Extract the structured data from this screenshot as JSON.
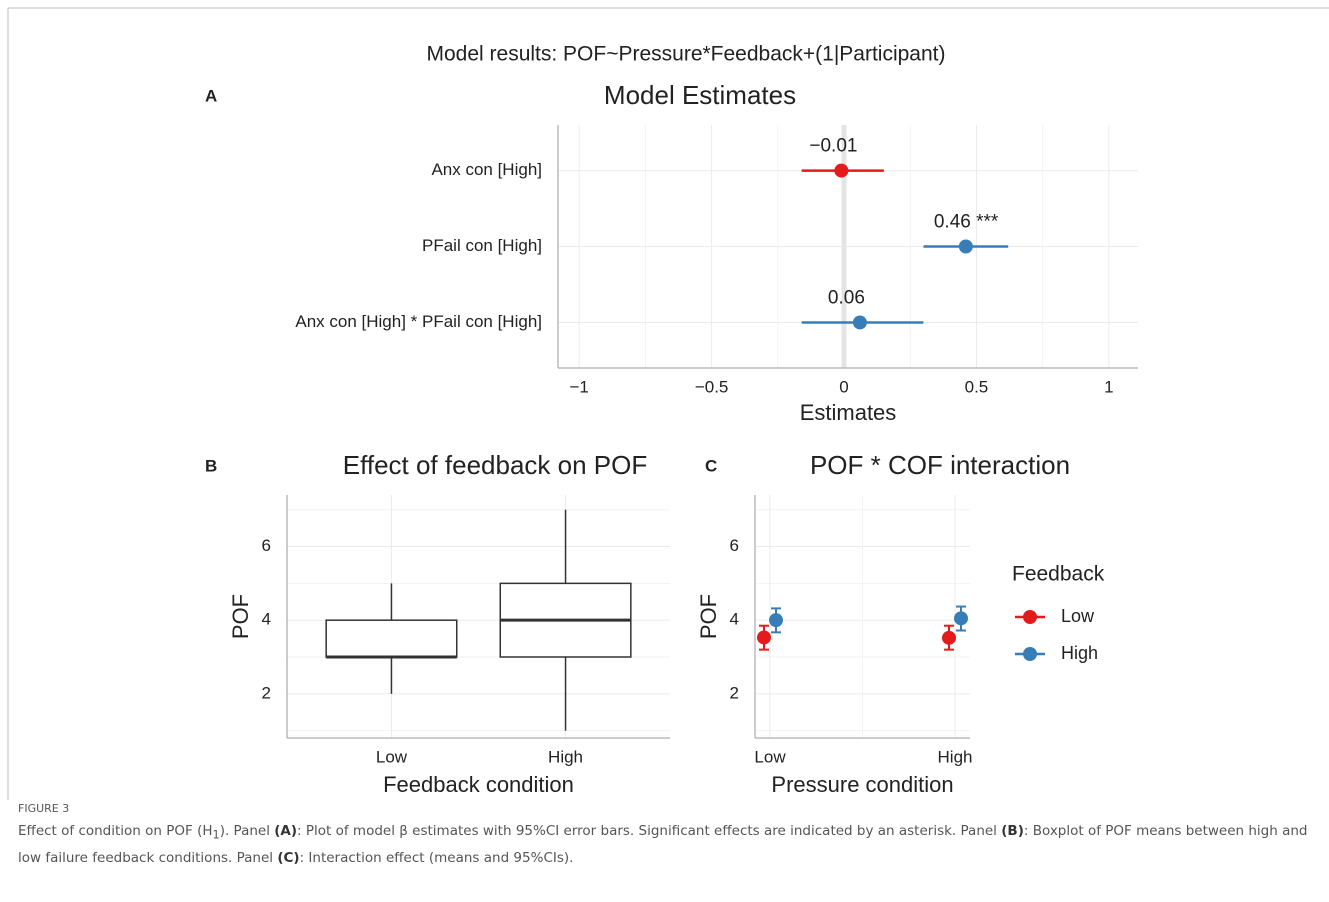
{
  "figure": {
    "title": "Model results: POF~Pressure*Feedback+(1|Participant)",
    "label": "FIGURE 3",
    "caption": [
      "Effect of condition on POF (H",
      "1",
      "). Panel ",
      "(A)",
      ": Plot of model β estimates with 95%CI error bars. Significant effects are indicated by an asterisk. Panel ",
      "(B)",
      ": Boxplot of POF means between high and low failure feedback conditions. Panel ",
      "(C)",
      ": Interaction effect (means and 95%CIs)."
    ]
  },
  "chart_data": [
    {
      "type": "forest",
      "panel": "A",
      "title": "Model Estimates",
      "x_label": "Estimates",
      "categories": [
        "Anx con [High]",
        "PFail con [High]",
        "Anx con [High] * PFail con [High]"
      ],
      "values": [
        -0.01,
        0.46,
        0.06
      ],
      "value_labels": [
        "−0.01",
        "0.46 ***",
        "0.06"
      ],
      "ci_low": [
        -0.16,
        0.3,
        -0.16
      ],
      "ci_high": [
        0.15,
        0.62,
        0.3
      ],
      "colors": [
        "#e41a1c",
        "#377eb8",
        "#377eb8"
      ],
      "xlim": [
        -1.08,
        1.11
      ],
      "xticks": [
        {
          "value": -1,
          "label": "−1"
        },
        {
          "value": -0.5,
          "label": "−0.5"
        },
        0,
        0.5,
        1
      ],
      "grid": true
    },
    {
      "type": "box",
      "panel": "B",
      "title": "Effect of feedback on POF",
      "x_label": "Feedback condition",
      "y_label": "POF",
      "categories": [
        "Low",
        "High"
      ],
      "whisker_low": [
        2,
        1
      ],
      "q1": [
        3,
        3
      ],
      "median": [
        3,
        4
      ],
      "q3": [
        4,
        5
      ],
      "whisker_high": [
        5,
        7
      ],
      "ylim": [
        0.8,
        7.4
      ],
      "yticks": [
        2,
        4,
        6
      ],
      "grid": true
    },
    {
      "type": "pointrange",
      "panel": "C",
      "title": "POF * COF interaction",
      "x_label": "Pressure condition",
      "y_label": "POF",
      "legend_title": "Feedback",
      "legend": "right",
      "categories": [
        "Low",
        "High"
      ],
      "series": [
        {
          "name": "Low",
          "color": "#e41a1c",
          "values": [
            3.53,
            3.52
          ],
          "ci_low": [
            3.2,
            3.2
          ],
          "ci_high": [
            3.85,
            3.85
          ]
        },
        {
          "name": "High",
          "color": "#377eb8",
          "values": [
            4.0,
            4.05
          ],
          "ci_low": [
            3.67,
            3.72
          ],
          "ci_high": [
            4.32,
            4.37
          ]
        }
      ],
      "ylim": [
        0.8,
        7.4
      ],
      "yticks": [
        2,
        4,
        6
      ],
      "grid": true
    }
  ]
}
